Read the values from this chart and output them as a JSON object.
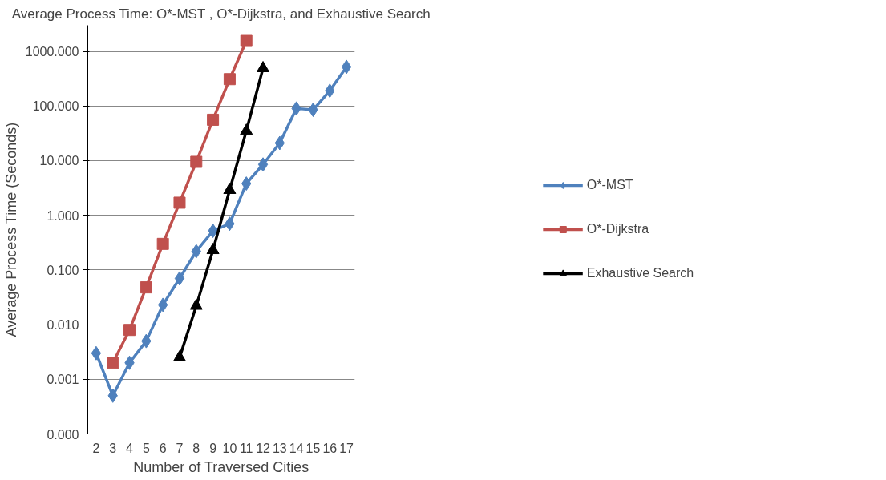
{
  "chart_data": {
    "type": "line",
    "title": "Average Process Time: O*-MST , O*-Dijkstra, and Exhaustive Search",
    "xlabel": "Number of Traversed Cities",
    "ylabel": "Average Process Time (Seconds)",
    "categories": [
      "2",
      "3",
      "4",
      "5",
      "6",
      "7",
      "8",
      "9",
      "10",
      "11",
      "12",
      "13",
      "14",
      "15",
      "16",
      "17"
    ],
    "log": "y",
    "ylim": [
      0.0001,
      3000
    ],
    "yticks": [
      {
        "value": 0.0001,
        "label": "0.000"
      },
      {
        "value": 0.001,
        "label": "0.001"
      },
      {
        "value": 0.01,
        "label": "0.010"
      },
      {
        "value": 0.1,
        "label": "0.100"
      },
      {
        "value": 1,
        "label": "1.000"
      },
      {
        "value": 10,
        "label": "10.000"
      },
      {
        "value": 100,
        "label": "100.000"
      },
      {
        "value": 1000,
        "label": "1000.000"
      }
    ],
    "grid": "y",
    "legend": "right",
    "series": [
      {
        "name": "O*-MST",
        "color": "#4f81bd",
        "marker": "diamond",
        "values": [
          0.003,
          0.0005,
          0.002,
          0.005,
          0.023,
          0.07,
          0.22,
          0.52,
          0.7,
          3.8,
          8.5,
          21,
          90,
          85,
          190,
          520
        ]
      },
      {
        "name": "O*-Dijkstra",
        "color": "#c0504d",
        "marker": "square",
        "values": [
          null,
          0.002,
          0.008,
          0.048,
          0.3,
          1.7,
          9.5,
          56,
          310,
          1550,
          null,
          null,
          null,
          null,
          null,
          null
        ]
      },
      {
        "name": "Exhaustive Search",
        "color": "#000000",
        "marker": "triangle",
        "values": [
          null,
          null,
          null,
          null,
          null,
          0.0025,
          0.022,
          0.23,
          2.9,
          35,
          490,
          null,
          null,
          null,
          null,
          null
        ]
      }
    ]
  }
}
